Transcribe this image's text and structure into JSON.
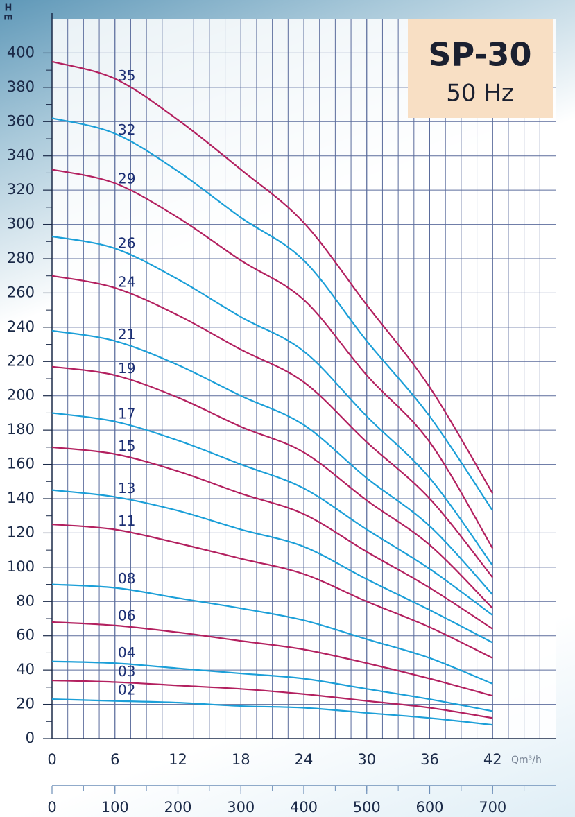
{
  "chart_data": {
    "type": "line",
    "title": "SP-30",
    "subtitle": "50 Hz",
    "ylabel": [
      "H",
      "m"
    ],
    "xlabel": "Qm³/h",
    "xlim": [
      0,
      48
    ],
    "xticks": [
      0,
      6,
      12,
      18,
      24,
      30,
      36,
      42
    ],
    "ylim": [
      0,
      420
    ],
    "yticks": [
      0,
      20,
      40,
      60,
      80,
      100,
      120,
      140,
      160,
      180,
      200,
      220,
      240,
      260,
      280,
      300,
      320,
      340,
      360,
      380,
      400
    ],
    "x2lim": [
      0,
      800
    ],
    "x2ticks": [
      0,
      100,
      200,
      300,
      400,
      500,
      600,
      700
    ],
    "grid": true,
    "x": [
      0,
      6,
      12,
      18,
      24,
      30,
      36,
      42
    ],
    "series": [
      {
        "name": "35",
        "color": "#b3205f",
        "values": [
          395,
          385,
          361,
          332,
          301,
          253,
          205,
          143
        ]
      },
      {
        "name": "32",
        "color": "#1b9fd8",
        "values": [
          362,
          353,
          331,
          304,
          279,
          232,
          188,
          133
        ]
      },
      {
        "name": "29",
        "color": "#b3205f",
        "values": [
          332,
          324,
          304,
          279,
          256,
          212,
          173,
          111
        ]
      },
      {
        "name": "26",
        "color": "#1b9fd8",
        "values": [
          293,
          286,
          268,
          246,
          226,
          188,
          152,
          101
        ]
      },
      {
        "name": "24",
        "color": "#b3205f",
        "values": [
          270,
          263,
          247,
          227,
          208,
          173,
          140,
          94
        ]
      },
      {
        "name": "21",
        "color": "#1b9fd8",
        "values": [
          238,
          232,
          218,
          200,
          183,
          152,
          124,
          84
        ]
      },
      {
        "name": "19",
        "color": "#b3205f",
        "values": [
          217,
          212,
          199,
          182,
          167,
          139,
          113,
          76
        ]
      },
      {
        "name": "17",
        "color": "#1b9fd8",
        "values": [
          190,
          185,
          174,
          160,
          146,
          122,
          99,
          72
        ]
      },
      {
        "name": "15",
        "color": "#b3205f",
        "values": [
          170,
          166,
          156,
          143,
          131,
          109,
          88,
          64
        ]
      },
      {
        "name": "13",
        "color": "#1b9fd8",
        "values": [
          145,
          141,
          133,
          122,
          112,
          93,
          75,
          56
        ]
      },
      {
        "name": "11",
        "color": "#b3205f",
        "values": [
          125,
          122,
          114,
          105,
          96,
          80,
          65,
          47
        ]
      },
      {
        "name": "08",
        "color": "#1b9fd8",
        "values": [
          90,
          88,
          82,
          76,
          69,
          58,
          47,
          32
        ]
      },
      {
        "name": "06",
        "color": "#b3205f",
        "values": [
          68,
          66,
          62,
          57,
          52,
          44,
          35,
          25
        ]
      },
      {
        "name": "04",
        "color": "#1b9fd8",
        "values": [
          45,
          44,
          41,
          38,
          35,
          29,
          23,
          16
        ]
      },
      {
        "name": "03",
        "color": "#b3205f",
        "values": [
          34,
          33,
          31,
          29,
          26,
          22,
          18,
          12
        ]
      },
      {
        "name": "02",
        "color": "#1b9fd8",
        "values": [
          23,
          22,
          21,
          19,
          18,
          15,
          12,
          8
        ]
      }
    ]
  }
}
